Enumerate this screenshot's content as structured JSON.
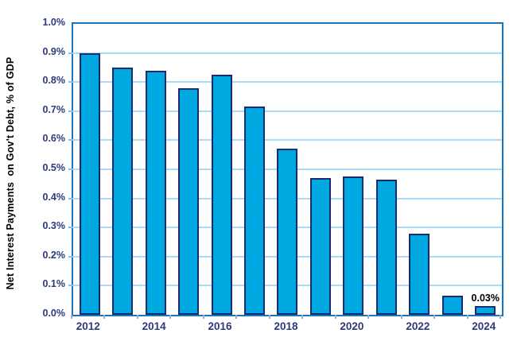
{
  "chart_data": {
    "type": "bar",
    "title": "",
    "xlabel": "",
    "ylabel": "Net Interest Payments  on Gov't Debt, % of GDP",
    "categories": [
      "2012",
      "2013",
      "2014",
      "2015",
      "2016",
      "2017",
      "2018",
      "2019",
      "2020",
      "2021",
      "2022",
      "2023",
      "2024"
    ],
    "values": [
      0.9,
      0.85,
      0.84,
      0.78,
      0.825,
      0.715,
      0.57,
      0.47,
      0.475,
      0.465,
      0.28,
      0.065,
      0.03
    ],
    "ylim": [
      0.0,
      1.0
    ],
    "y_tick_labels": [
      "0.0%",
      "0.1%",
      "0.2%",
      "0.3%",
      "0.4%",
      "0.5%",
      "0.6%",
      "0.7%",
      "0.8%",
      "0.9%",
      "1.0%"
    ],
    "x_tick_labels": [
      "2012",
      "2014",
      "2016",
      "2018",
      "2020",
      "2022",
      "2024"
    ],
    "grid": "horizontal",
    "legend": "none",
    "annotations": [
      {
        "category": "2024",
        "text": "0.03%"
      }
    ],
    "colors": {
      "bar_fill": "#00A8E1",
      "bar_border": "#1C2B6E",
      "gridline": "#A8DCF8",
      "plot_border": "#1B75BC",
      "tick_label": "#2F3A78",
      "annotation_text": "#000000",
      "axis_title": "#000000",
      "background": "#ffffff"
    }
  }
}
